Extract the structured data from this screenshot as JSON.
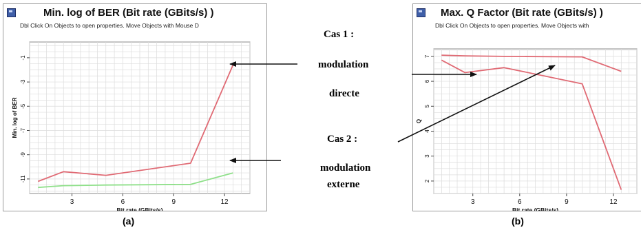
{
  "colors": {
    "red_series": "#e06a74",
    "green_series": "#8fe08a",
    "grid": "#dcdcdc",
    "frame": "#9a9a9a",
    "arrow": "#111111"
  },
  "panel_a": {
    "title": "Min. log of BER (Bit rate (GBits/s) )",
    "hint": "Dbl Click On Objects to open properties.  Move Objects with Mouse D",
    "icon": "window-icon"
  },
  "panel_b": {
    "title": "Max. Q Factor (Bit rate (GBits/s) )",
    "hint": "Dbl Click On Objects to open properties.  Move Objects with",
    "icon": "window-icon"
  },
  "annotations": {
    "cas1": "Cas 1 :",
    "cas1_line1": "modulation",
    "cas1_line2": "directe",
    "cas2": "Cas 2 :",
    "cas2_line1": "modulation",
    "cas2_line2": "externe"
  },
  "captions": {
    "a": "(a)",
    "b": "(b)"
  },
  "chart_data": [
    {
      "type": "line",
      "title": "Min. log of BER (Bit rate (GBits/s) )",
      "xlabel": "Bit rate (GBits/s)",
      "ylabel": "Min. log of BER",
      "xlim": [
        0.5,
        13.5
      ],
      "ylim": [
        -12.2,
        0.3
      ],
      "x_ticks": [
        3,
        6,
        9,
        12
      ],
      "y_ticks": [
        -1,
        -3,
        -5,
        -7,
        -9,
        -11
      ],
      "grid": true,
      "series": [
        {
          "color": "#e06a74",
          "x": [
            1,
            2.5,
            5,
            10,
            12.5
          ],
          "y": [
            -11.2,
            -10.4,
            -10.7,
            -9.7,
            -1.6
          ]
        },
        {
          "color": "#8fe08a",
          "x": [
            1,
            2.5,
            5,
            10,
            12.5
          ],
          "y": [
            -11.7,
            -11.55,
            -11.5,
            -11.45,
            -10.5
          ]
        }
      ]
    },
    {
      "type": "line",
      "title": "Max. Q Factor (Bit rate (GBits/s) )",
      "xlabel": "Bit rate (GBits/s)",
      "ylabel": "Q",
      "xlim": [
        0.5,
        13.5
      ],
      "ylim": [
        1.5,
        7.3
      ],
      "x_ticks": [
        3,
        6,
        9,
        12
      ],
      "y_ticks": [
        2,
        3,
        4,
        5,
        6,
        7
      ],
      "grid": true,
      "series": [
        {
          "color": "#e06a74",
          "x": [
            1,
            2.5,
            5,
            10,
            12.5
          ],
          "y": [
            7.05,
            7.02,
            7.0,
            6.98,
            6.4
          ]
        },
        {
          "color": "#e06a74",
          "x": [
            1,
            2.5,
            5,
            10,
            12.5
          ],
          "y": [
            6.85,
            6.35,
            6.55,
            5.9,
            1.65
          ]
        }
      ]
    }
  ]
}
